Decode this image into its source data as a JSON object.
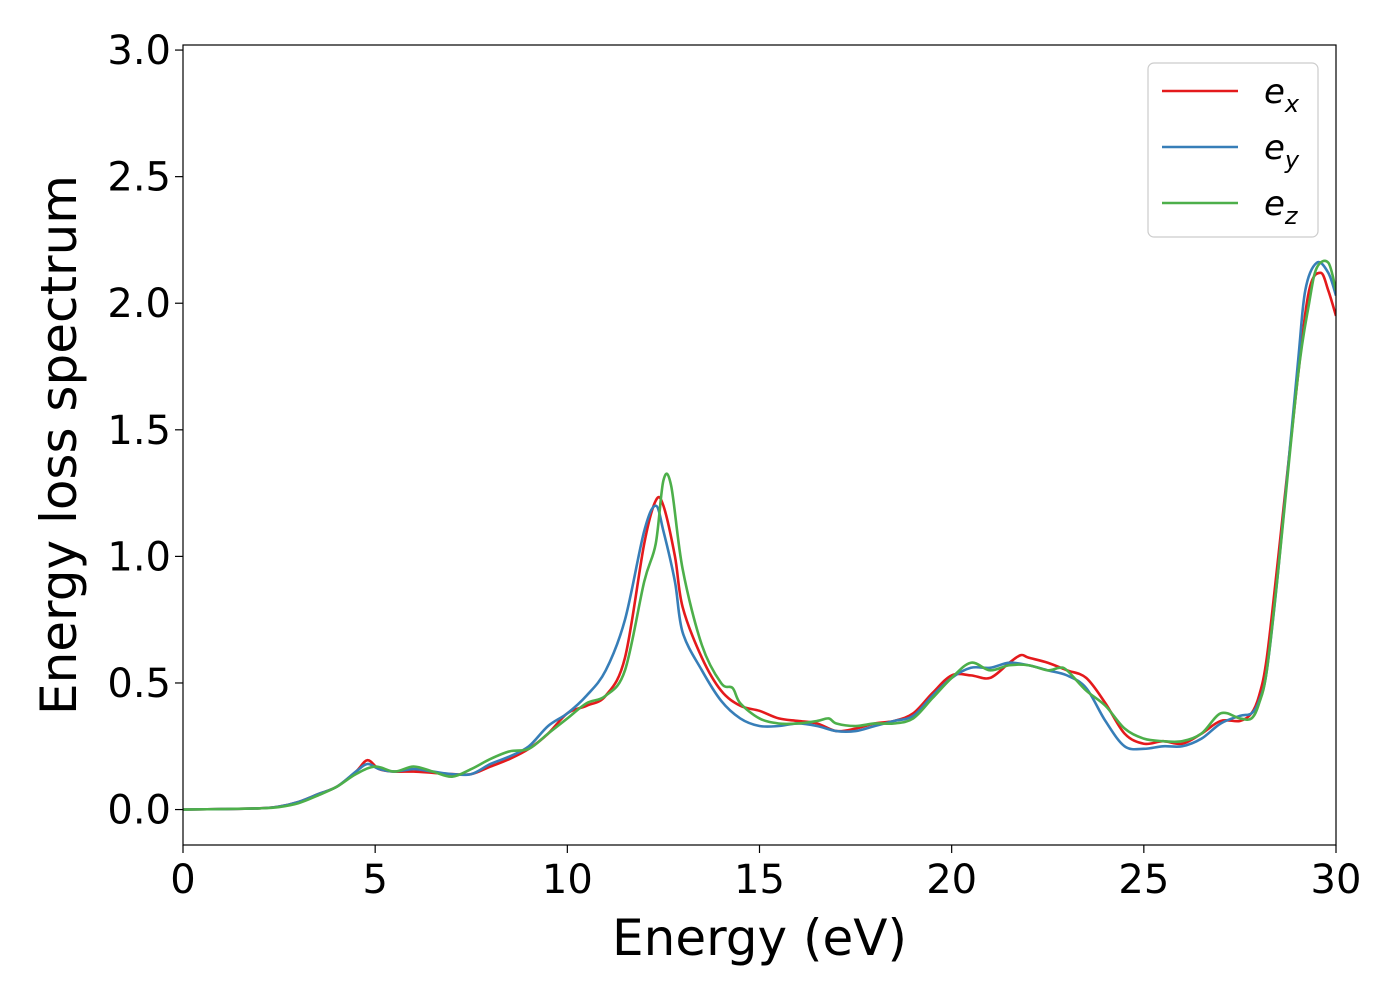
{
  "chart_data": {
    "type": "line",
    "xlabel": "Energy (eV)",
    "ylabel": "Energy loss spectrum",
    "xlim": [
      0,
      30
    ],
    "ylim": [
      -0.14,
      3.02
    ],
    "xticks": [
      0,
      5,
      10,
      15,
      20,
      25,
      30
    ],
    "xtick_labels": [
      "0",
      "5",
      "10",
      "15",
      "20",
      "25",
      "30"
    ],
    "yticks": [
      0.0,
      0.5,
      1.0,
      1.5,
      2.0,
      2.5,
      3.0
    ],
    "ytick_labels": [
      "0.0",
      "0.5",
      "1.0",
      "1.5",
      "2.0",
      "2.5",
      "3.0"
    ],
    "grid": false,
    "legend_position": "top-right",
    "series": [
      {
        "name": "e",
        "subscript": "x",
        "color": "#e41a1c",
        "x": [
          0,
          1,
          2,
          2.5,
          3,
          3.5,
          4,
          4.5,
          4.8,
          5.1,
          5.5,
          6,
          6.5,
          7,
          7.5,
          8,
          8.5,
          9,
          9.5,
          10,
          10.5,
          11,
          11.5,
          12,
          12.3,
          12.5,
          12.8,
          13,
          13.5,
          14,
          14.5,
          15,
          15.5,
          16,
          16.5,
          17,
          17.5,
          18,
          18.5,
          19,
          19.5,
          20,
          20.5,
          21,
          21.5,
          21.8,
          22,
          22.5,
          23,
          23.5,
          24,
          24.5,
          25,
          25.5,
          26,
          26.5,
          27,
          27.5,
          27.8,
          28,
          28.2,
          28.5,
          29,
          29.3,
          29.6,
          29.8,
          30
        ],
        "y": [
          0,
          0.002,
          0.005,
          0.012,
          0.03,
          0.06,
          0.09,
          0.15,
          0.195,
          0.16,
          0.15,
          0.15,
          0.145,
          0.14,
          0.14,
          0.17,
          0.2,
          0.24,
          0.3,
          0.38,
          0.41,
          0.45,
          0.6,
          1.05,
          1.22,
          1.2,
          1.0,
          0.8,
          0.6,
          0.47,
          0.41,
          0.39,
          0.36,
          0.35,
          0.34,
          0.31,
          0.32,
          0.34,
          0.35,
          0.38,
          0.46,
          0.53,
          0.53,
          0.52,
          0.58,
          0.61,
          0.6,
          0.58,
          0.55,
          0.52,
          0.42,
          0.3,
          0.26,
          0.27,
          0.26,
          0.3,
          0.35,
          0.35,
          0.38,
          0.45,
          0.6,
          1.0,
          1.7,
          2.05,
          2.12,
          2.05,
          1.95
        ]
      },
      {
        "name": "e",
        "subscript": "y",
        "color": "#377eb8",
        "x": [
          0,
          1,
          2,
          2.5,
          3,
          3.5,
          4,
          4.5,
          4.8,
          5.1,
          5.5,
          6,
          6.5,
          7,
          7.5,
          8,
          8.5,
          9,
          9.5,
          10,
          10.5,
          11,
          11.5,
          12,
          12.3,
          12.5,
          12.8,
          13,
          13.5,
          14,
          14.5,
          15,
          15.5,
          16,
          16.5,
          17,
          17.5,
          18,
          18.5,
          19,
          19.5,
          20,
          20.5,
          21,
          21.5,
          22,
          22.5,
          23,
          23.5,
          24,
          24.5,
          25,
          25.5,
          26,
          26.5,
          27,
          27.5,
          27.8,
          28,
          28.2,
          28.5,
          29,
          29.2,
          29.5,
          29.8,
          30
        ],
        "y": [
          0,
          0.002,
          0.005,
          0.012,
          0.03,
          0.06,
          0.09,
          0.15,
          0.18,
          0.16,
          0.15,
          0.16,
          0.15,
          0.14,
          0.14,
          0.18,
          0.21,
          0.25,
          0.33,
          0.38,
          0.45,
          0.55,
          0.75,
          1.1,
          1.2,
          1.1,
          0.9,
          0.7,
          0.55,
          0.43,
          0.36,
          0.33,
          0.33,
          0.34,
          0.33,
          0.31,
          0.31,
          0.33,
          0.35,
          0.37,
          0.45,
          0.52,
          0.56,
          0.56,
          0.58,
          0.57,
          0.55,
          0.53,
          0.48,
          0.35,
          0.25,
          0.24,
          0.25,
          0.25,
          0.28,
          0.34,
          0.37,
          0.38,
          0.43,
          0.55,
          0.95,
          1.75,
          2.05,
          2.16,
          2.12,
          2.03
        ]
      },
      {
        "name": "e",
        "subscript": "z",
        "color": "#4daf4a",
        "x": [
          0,
          1,
          2,
          2.5,
          3,
          3.5,
          4,
          4.5,
          5,
          5.5,
          6,
          6.5,
          7,
          7.5,
          8,
          8.5,
          9,
          9.5,
          10,
          10.5,
          11,
          11.5,
          12,
          12.3,
          12.5,
          12.7,
          13,
          13.5,
          14,
          14.3,
          14.5,
          15,
          15.5,
          16,
          16.5,
          16.8,
          17,
          17.5,
          18,
          18.5,
          19,
          19.5,
          20,
          20.5,
          21,
          21.5,
          22,
          22.5,
          22.8,
          23,
          23.5,
          24,
          24.5,
          25,
          25.5,
          26,
          26.5,
          27,
          27.5,
          27.8,
          28,
          28.2,
          28.5,
          29,
          29.3,
          29.5,
          29.8,
          30
        ],
        "y": [
          0,
          0.002,
          0.005,
          0.01,
          0.025,
          0.055,
          0.09,
          0.14,
          0.17,
          0.15,
          0.17,
          0.15,
          0.13,
          0.16,
          0.2,
          0.23,
          0.24,
          0.3,
          0.36,
          0.42,
          0.45,
          0.55,
          0.9,
          1.05,
          1.3,
          1.28,
          0.95,
          0.65,
          0.5,
          0.48,
          0.42,
          0.36,
          0.34,
          0.34,
          0.35,
          0.36,
          0.34,
          0.33,
          0.34,
          0.34,
          0.36,
          0.44,
          0.52,
          0.58,
          0.55,
          0.57,
          0.57,
          0.55,
          0.56,
          0.55,
          0.47,
          0.41,
          0.32,
          0.28,
          0.27,
          0.27,
          0.3,
          0.38,
          0.36,
          0.36,
          0.42,
          0.55,
          0.95,
          1.7,
          2.0,
          2.14,
          2.16,
          2.05
        ]
      }
    ]
  }
}
